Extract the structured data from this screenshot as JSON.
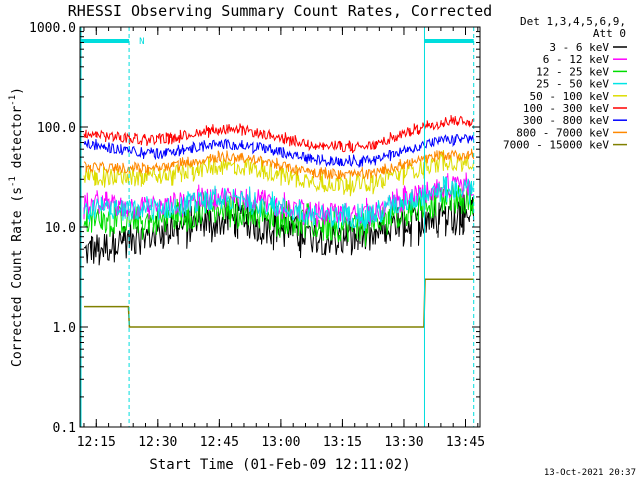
{
  "chart_data": {
    "type": "line",
    "title": "RHESSI Observing Summary Count Rates, Corrected",
    "xlabel": "Start Time (01-Feb-09 12:11:02)",
    "ylabel": "Corrected Count Rate (s-1 detector-1)",
    "ylabel_parts": {
      "main": "Corrected Count Rate (s",
      "exp1": "-1",
      "mid": " detector",
      "exp2": "-1",
      "end": ")"
    },
    "y_scale": "log",
    "ylim": [
      0.1,
      1000.0
    ],
    "y_ticks": [
      "0.1",
      "1.0",
      "10.0",
      "100.0",
      "1000.0"
    ],
    "x_ticks": [
      "12:15",
      "12:30",
      "12:45",
      "13:00",
      "13:15",
      "13:30",
      "13:45"
    ],
    "legend_header": [
      "Det 1,3,4,5,6,9,",
      "Att 0"
    ],
    "legend_position": "right",
    "timestamp": "13-Oct-2021 20:37",
    "marker_label": "N",
    "night_intervals": [
      [
        "12:11",
        "12:23"
      ],
      [
        "13:35",
        "13:47"
      ]
    ],
    "series": [
      {
        "name": "3 - 6 keV",
        "color": "#000000",
        "start": 5.5,
        "mid": 8.5,
        "end": 13.5
      },
      {
        "name": "6 - 12 keV",
        "color": "#ff00ff",
        "start": 17.0,
        "mid": 15.0,
        "end": 25.0
      },
      {
        "name": "12 - 25 keV",
        "color": "#00dd00",
        "start": 12.5,
        "mid": 11.0,
        "end": 19.0
      },
      {
        "name": "25 - 50 keV",
        "color": "#00e5e5",
        "start": 15.0,
        "mid": 14.0,
        "end": 24.0
      },
      {
        "name": "50 - 100 keV",
        "color": "#dddd00",
        "start": 32.0,
        "mid": 30.0,
        "end": 45.0
      },
      {
        "name": "100 - 300 keV",
        "color": "#ff0000",
        "start": 85.0,
        "mid": 70.0,
        "end": 115.0
      },
      {
        "name": "300 - 800 keV",
        "color": "#0000ff",
        "start": 68.0,
        "mid": 50.0,
        "end": 75.0
      },
      {
        "name": "800 - 7000 keV",
        "color": "#ff8800",
        "start": 40.0,
        "mid": 37.0,
        "end": 52.0
      },
      {
        "name": "7000 - 15000 keV",
        "color": "#808000",
        "start": 1.6,
        "mid": 1.0,
        "end": 3.0
      }
    ]
  }
}
